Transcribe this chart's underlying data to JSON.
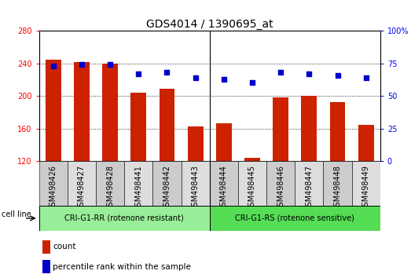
{
  "title": "GDS4014 / 1390695_at",
  "categories": [
    "GSM498426",
    "GSM498427",
    "GSM498428",
    "GSM498441",
    "GSM498442",
    "GSM498443",
    "GSM498444",
    "GSM498445",
    "GSM498446",
    "GSM498447",
    "GSM498448",
    "GSM498449"
  ],
  "bar_values": [
    244,
    241,
    240,
    204,
    209,
    163,
    166,
    124,
    198,
    200,
    192,
    165
  ],
  "scatter_values": [
    73,
    74,
    74,
    67,
    68,
    64,
    63,
    60,
    68,
    67,
    66,
    64
  ],
  "bar_color": "#cc2200",
  "scatter_color": "#0000cc",
  "ylim_left": [
    120,
    280
  ],
  "ylim_right": [
    0,
    100
  ],
  "yticks_left": [
    120,
    160,
    200,
    240,
    280
  ],
  "yticks_right": [
    0,
    25,
    50,
    75,
    100
  ],
  "ytick_labels_right": [
    "0",
    "25",
    "50",
    "75",
    "100%"
  ],
  "group1_label": "CRI-G1-RR (rotenone resistant)",
  "group2_label": "CRI-G1-RS (rotenone sensitive)",
  "group1_color": "#99ee99",
  "group2_color": "#55dd55",
  "cell_line_label": "cell line",
  "legend_count_label": "count",
  "legend_pct_label": "percentile rank within the sample",
  "bg_color": "#ffffff",
  "grid_color": "#000000",
  "title_fontsize": 10,
  "tick_fontsize": 7,
  "bar_bottom": 120,
  "col_bg_even": "#cccccc",
  "col_bg_odd": "#dddddd"
}
